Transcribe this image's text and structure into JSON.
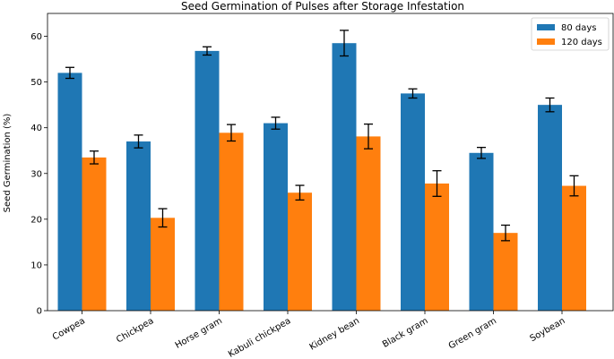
{
  "chart_data": {
    "type": "bar",
    "title": "Seed Germination of Pulses after Storage Infestation",
    "xlabel": "",
    "ylabel": "Seed Germination (%)",
    "ylim": [
      0,
      65
    ],
    "yticks": [
      0,
      10,
      20,
      30,
      40,
      50,
      60
    ],
    "grid": false,
    "legend_position": "top-right",
    "categories": [
      "Cowpea",
      "Chickpea",
      "Horse gram",
      "Kabuli chickpea",
      "Kidney bean",
      "Black gram",
      "Green gram",
      "Soybean"
    ],
    "series": [
      {
        "name": "80 days",
        "color": "#1f77b4",
        "values": [
          52.0,
          37.0,
          56.8,
          41.0,
          58.5,
          47.5,
          34.5,
          45.0
        ],
        "errors": [
          1.2,
          1.4,
          0.9,
          1.3,
          2.8,
          1.0,
          1.2,
          1.5
        ]
      },
      {
        "name": "120 days",
        "color": "#ff7f0e",
        "values": [
          33.5,
          20.3,
          38.9,
          25.8,
          38.1,
          27.8,
          17.0,
          27.3
        ],
        "errors": [
          1.4,
          2.0,
          1.8,
          1.6,
          2.7,
          2.8,
          1.7,
          2.2
        ]
      }
    ]
  }
}
